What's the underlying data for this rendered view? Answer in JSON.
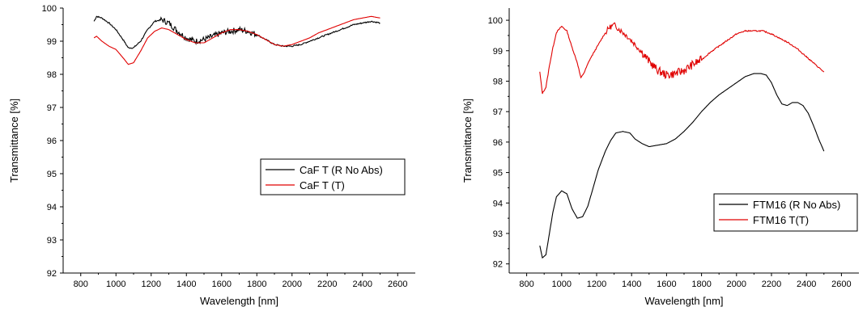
{
  "chart_data": [
    {
      "type": "line",
      "xlabel": "Wavelength [nm]",
      "ylabel": "Transmittance [%]",
      "xlim": [
        700,
        2700
      ],
      "ylim": [
        92,
        100
      ],
      "xticks": [
        800,
        1000,
        1200,
        1400,
        1600,
        1800,
        2000,
        2200,
        2400,
        2600
      ],
      "yticks": [
        92,
        93,
        94,
        95,
        96,
        97,
        98,
        99,
        100
      ],
      "legend_position": "right-middle",
      "series": [
        {
          "name": "CaF T (R No Abs)",
          "color": "#000000",
          "noisy": true,
          "x": [
            875,
            890,
            920,
            960,
            1000,
            1040,
            1070,
            1100,
            1140,
            1180,
            1220,
            1260,
            1300,
            1350,
            1400,
            1450,
            1500,
            1550,
            1600,
            1650,
            1700,
            1750,
            1800,
            1850,
            1900,
            1950,
            2000,
            2050,
            2100,
            2150,
            2200,
            2250,
            2300,
            2350,
            2400,
            2450,
            2500
          ],
          "y": [
            99.6,
            99.75,
            99.7,
            99.55,
            99.35,
            99.05,
            98.8,
            98.8,
            99.0,
            99.35,
            99.6,
            99.65,
            99.55,
            99.3,
            99.1,
            99.0,
            99.05,
            99.15,
            99.25,
            99.3,
            99.35,
            99.3,
            99.2,
            99.05,
            98.9,
            98.85,
            98.85,
            98.9,
            99.0,
            99.1,
            99.2,
            99.3,
            99.4,
            99.5,
            99.55,
            99.6,
            99.55
          ]
        },
        {
          "name": "CaF T (T)",
          "color": "#e00000",
          "noisy": false,
          "x": [
            875,
            890,
            920,
            960,
            1000,
            1040,
            1070,
            1100,
            1140,
            1180,
            1220,
            1260,
            1300,
            1350,
            1400,
            1450,
            1500,
            1550,
            1600,
            1650,
            1700,
            1750,
            1800,
            1850,
            1900,
            1950,
            2000,
            2050,
            2100,
            2150,
            2200,
            2250,
            2300,
            2350,
            2400,
            2450,
            2500
          ],
          "y": [
            99.1,
            99.15,
            99.0,
            98.85,
            98.75,
            98.5,
            98.3,
            98.35,
            98.7,
            99.1,
            99.3,
            99.4,
            99.35,
            99.2,
            99.05,
            98.95,
            98.95,
            99.1,
            99.25,
            99.35,
            99.35,
            99.3,
            99.2,
            99.05,
            98.9,
            98.85,
            98.9,
            99.0,
            99.1,
            99.25,
            99.35,
            99.45,
            99.55,
            99.65,
            99.7,
            99.75,
            99.7
          ]
        }
      ]
    },
    {
      "type": "line",
      "xlabel": "Wavelength [nm]",
      "ylabel": "Transmittance [%]",
      "xlim": [
        700,
        2700
      ],
      "ylim": [
        91.7,
        100.4
      ],
      "xticks": [
        800,
        1000,
        1200,
        1400,
        1600,
        1800,
        2000,
        2200,
        2400,
        2600
      ],
      "yticks": [
        92,
        93,
        94,
        95,
        96,
        97,
        98,
        99,
        100
      ],
      "legend_position": "bottom-right",
      "series": [
        {
          "name": "FTM16 (R No Abs)",
          "color": "#000000",
          "noisy": false,
          "x": [
            875,
            890,
            910,
            930,
            950,
            970,
            1000,
            1030,
            1060,
            1090,
            1120,
            1150,
            1180,
            1210,
            1250,
            1280,
            1310,
            1350,
            1390,
            1420,
            1460,
            1500,
            1550,
            1600,
            1650,
            1700,
            1750,
            1800,
            1850,
            1900,
            1950,
            2000,
            2050,
            2100,
            2140,
            2170,
            2200,
            2230,
            2260,
            2290,
            2320,
            2350,
            2380,
            2410,
            2440,
            2470,
            2500
          ],
          "y": [
            92.6,
            92.2,
            92.3,
            93.0,
            93.7,
            94.2,
            94.4,
            94.3,
            93.8,
            93.5,
            93.55,
            93.9,
            94.5,
            95.1,
            95.7,
            96.05,
            96.3,
            96.35,
            96.3,
            96.1,
            95.95,
            95.85,
            95.9,
            95.95,
            96.1,
            96.35,
            96.65,
            97.0,
            97.3,
            97.55,
            97.75,
            97.95,
            98.15,
            98.25,
            98.25,
            98.2,
            97.95,
            97.55,
            97.25,
            97.2,
            97.3,
            97.3,
            97.2,
            96.95,
            96.55,
            96.1,
            95.7
          ]
        },
        {
          "name": "FTM16 T(T)",
          "color": "#e00000",
          "noisy": true,
          "x": [
            875,
            890,
            910,
            930,
            950,
            970,
            1000,
            1030,
            1060,
            1090,
            1110,
            1130,
            1160,
            1200,
            1240,
            1270,
            1300,
            1340,
            1380,
            1420,
            1460,
            1500,
            1550,
            1600,
            1650,
            1700,
            1750,
            1800,
            1850,
            1900,
            1950,
            2000,
            2050,
            2100,
            2150,
            2200,
            2250,
            2300,
            2350,
            2400,
            2450,
            2500
          ],
          "y": [
            98.3,
            97.6,
            97.8,
            98.5,
            99.1,
            99.6,
            99.8,
            99.65,
            99.1,
            98.6,
            98.1,
            98.3,
            98.7,
            99.1,
            99.5,
            99.75,
            99.85,
            99.65,
            99.45,
            99.2,
            98.95,
            98.65,
            98.35,
            98.2,
            98.25,
            98.35,
            98.55,
            98.7,
            98.95,
            99.15,
            99.35,
            99.55,
            99.65,
            99.65,
            99.65,
            99.55,
            99.4,
            99.25,
            99.05,
            98.8,
            98.55,
            98.3
          ]
        }
      ]
    }
  ]
}
